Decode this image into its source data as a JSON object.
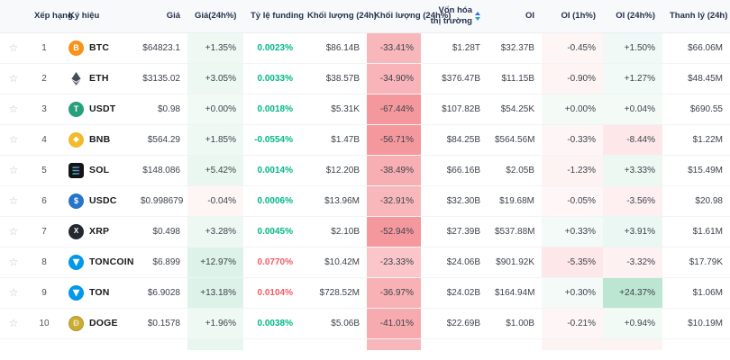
{
  "colors": {
    "funding_positive": "#00b888",
    "funding_negative": "#f55a67",
    "heat_green_rgb": "34,169,106",
    "heat_red_rgb": "239,83,92",
    "header_bg": "#f8f9fb",
    "sort_icon_top": "#3a6fd8",
    "sort_icon_bottom": "#2aa3c4"
  },
  "table": {
    "columns": [
      {
        "label": ""
      },
      {
        "label": "Xếp hạng"
      },
      {
        "label": "Ký hiệu"
      },
      {
        "label": "Giá"
      },
      {
        "label": "Giá(24h%)"
      },
      {
        "label": "Tỷ lệ funding"
      },
      {
        "label": "Khối lượng (24h)"
      },
      {
        "label": "Khối lượng (24h%)"
      },
      {
        "label": "Vốn hóa thị trường"
      },
      {
        "label": "OI"
      },
      {
        "label": "OI (1h%)"
      },
      {
        "label": "OI (24h%)"
      },
      {
        "label": "Thanh lý (24h)"
      }
    ],
    "rows": [
      {
        "rank": "1",
        "symbol": "BTC",
        "icon": "btc",
        "price": "$64823.1",
        "change24h": "+1.35%",
        "funding": "0.0023%",
        "funding_color": "green",
        "volume24h": "$86.14B",
        "volume24h_pct": "-33.41%",
        "market_cap": "$1.28T",
        "oi": "$32.37B",
        "oi_1h": "-0.45%",
        "oi_24h": "+1.50%",
        "liquidation24h": "$66.06M"
      },
      {
        "rank": "2",
        "symbol": "ETH",
        "icon": "eth",
        "price": "$3135.02",
        "change24h": "+3.05%",
        "funding": "0.0033%",
        "funding_color": "green",
        "volume24h": "$38.57B",
        "volume24h_pct": "-34.90%",
        "market_cap": "$376.47B",
        "oi": "$11.15B",
        "oi_1h": "-0.90%",
        "oi_24h": "+1.27%",
        "liquidation24h": "$48.45M"
      },
      {
        "rank": "3",
        "symbol": "USDT",
        "icon": "usdt",
        "price": "$0.98",
        "change24h": "+0.00%",
        "funding": "0.0018%",
        "funding_color": "green",
        "volume24h": "$5.31K",
        "volume24h_pct": "-67.44%",
        "market_cap": "$107.82B",
        "oi": "$54.25K",
        "oi_1h": "+0.00%",
        "oi_24h": "+0.04%",
        "liquidation24h": "$690.55"
      },
      {
        "rank": "4",
        "symbol": "BNB",
        "icon": "bnb",
        "price": "$564.29",
        "change24h": "+1.85%",
        "funding": "-0.0554%",
        "funding_color": "green",
        "volume24h": "$1.47B",
        "volume24h_pct": "-56.71%",
        "market_cap": "$84.25B",
        "oi": "$564.56M",
        "oi_1h": "-0.33%",
        "oi_24h": "-8.44%",
        "liquidation24h": "$1.22M"
      },
      {
        "rank": "5",
        "symbol": "SOL",
        "icon": "sol",
        "price": "$148.086",
        "change24h": "+5.42%",
        "funding": "0.0014%",
        "funding_color": "green",
        "volume24h": "$12.20B",
        "volume24h_pct": "-38.49%",
        "market_cap": "$66.16B",
        "oi": "$2.05B",
        "oi_1h": "-1.23%",
        "oi_24h": "+3.33%",
        "liquidation24h": "$15.49M"
      },
      {
        "rank": "6",
        "symbol": "USDC",
        "icon": "usdc",
        "price": "$0.998679",
        "change24h": "-0.04%",
        "funding": "0.0006%",
        "funding_color": "green",
        "volume24h": "$13.96M",
        "volume24h_pct": "-32.91%",
        "market_cap": "$32.30B",
        "oi": "$19.68M",
        "oi_1h": "-0.05%",
        "oi_24h": "-3.56%",
        "liquidation24h": "$20.98"
      },
      {
        "rank": "7",
        "symbol": "XRP",
        "icon": "xrp",
        "price": "$0.498",
        "change24h": "+3.28%",
        "funding": "0.0045%",
        "funding_color": "green",
        "volume24h": "$2.10B",
        "volume24h_pct": "-52.94%",
        "market_cap": "$27.39B",
        "oi": "$537.88M",
        "oi_1h": "+0.33%",
        "oi_24h": "+3.91%",
        "liquidation24h": "$1.61M"
      },
      {
        "rank": "8",
        "symbol": "TONCOIN",
        "icon": "toncoin",
        "price": "$6.899",
        "change24h": "+12.97%",
        "funding": "0.0770%",
        "funding_color": "red",
        "volume24h": "$10.42M",
        "volume24h_pct": "-23.33%",
        "market_cap": "$24.06B",
        "oi": "$901.92K",
        "oi_1h": "-5.35%",
        "oi_24h": "-3.32%",
        "liquidation24h": "$17.79K"
      },
      {
        "rank": "9",
        "symbol": "TON",
        "icon": "ton",
        "price": "$6.9028",
        "change24h": "+13.18%",
        "funding": "0.0104%",
        "funding_color": "red",
        "volume24h": "$728.52M",
        "volume24h_pct": "-36.97%",
        "market_cap": "$24.02B",
        "oi": "$164.94M",
        "oi_1h": "+0.30%",
        "oi_24h": "+24.37%",
        "liquidation24h": "$1.06M"
      },
      {
        "rank": "10",
        "symbol": "DOGE",
        "icon": "doge",
        "price": "$0.1578",
        "change24h": "+1.96%",
        "funding": "0.0038%",
        "funding_color": "green",
        "volume24h": "$5.06B",
        "volume24h_pct": "-41.01%",
        "market_cap": "$22.69B",
        "oi": "$1.00B",
        "oi_1h": "-0.21%",
        "oi_24h": "+0.94%",
        "liquidation24h": "$10.19M"
      }
    ],
    "partial_row_tints": {
      "change24h": "rgba(34,169,106,0.10)",
      "volume24h_pct": "rgba(239,83,92,0.42)",
      "oi_1h": "rgba(239,83,92,0.07)",
      "oi_24h": "rgba(239,83,92,0.07)"
    }
  }
}
